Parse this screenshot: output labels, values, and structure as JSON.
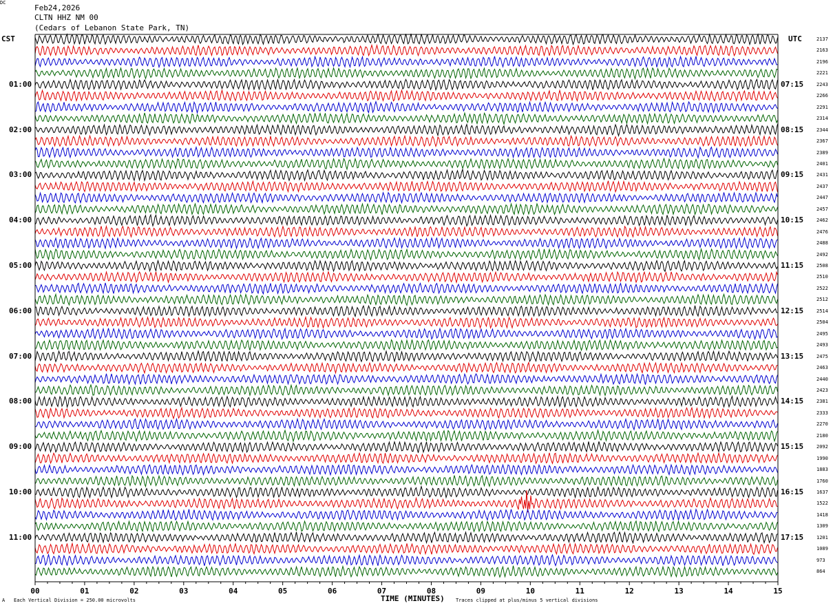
{
  "header": {
    "date": "Feb24,2026",
    "station": "CLTN HHZ NM 00",
    "location": "(Cedars of Lebanon State Park, TN)"
  },
  "left_axis_title": "CST",
  "right_axis_title": "UTC",
  "dc_title": "DC",
  "footer": {
    "mark": "A",
    "scale_note": "Each Vertical Division =  250.00 microvolts",
    "clip_note": "Traces clipped at plus/minus 5 vertical divisions"
  },
  "chart_data": {
    "type": "line",
    "xlabel": "TIME (MINUTES)",
    "x_ticks": [
      "00",
      "01",
      "02",
      "03",
      "04",
      "05",
      "06",
      "07",
      "08",
      "09",
      "10",
      "11",
      "12",
      "13",
      "14",
      "15"
    ],
    "xlim": [
      0,
      15
    ],
    "trace_minutes": 15,
    "trace_count": 48,
    "trace_colors": [
      "#000000",
      "#e00000",
      "#0000d0",
      "#006400"
    ],
    "cst_labels": [
      "01:00",
      "02:00",
      "03:00",
      "04:00",
      "05:00",
      "06:00",
      "07:00",
      "08:00",
      "09:00",
      "10:00",
      "11:00"
    ],
    "utc_labels": [
      "07:15",
      "08:15",
      "09:15",
      "10:15",
      "11:15",
      "12:15",
      "13:15",
      "14:15",
      "15:15",
      "16:15",
      "17:15"
    ],
    "hour_label_first_trace": 4,
    "hour_label_every": 4,
    "dc_offsets": [
      2137,
      2163,
      2196,
      2221,
      2243,
      2266,
      2291,
      2314,
      2344,
      2367,
      2389,
      2401,
      2431,
      2437,
      2447,
      2457,
      2462,
      2476,
      2488,
      2492,
      2508,
      2510,
      2522,
      2512,
      2514,
      2504,
      2495,
      2493,
      2475,
      2463,
      2440,
      2423,
      2381,
      2333,
      2270,
      2180,
      2092,
      1990,
      1883,
      1760,
      1637,
      1522,
      1418,
      1309,
      1201,
      1089,
      973,
      864
    ],
    "events": [
      {
        "trace": 41,
        "minute": 9.9,
        "amplitude": "clipped"
      }
    ]
  }
}
